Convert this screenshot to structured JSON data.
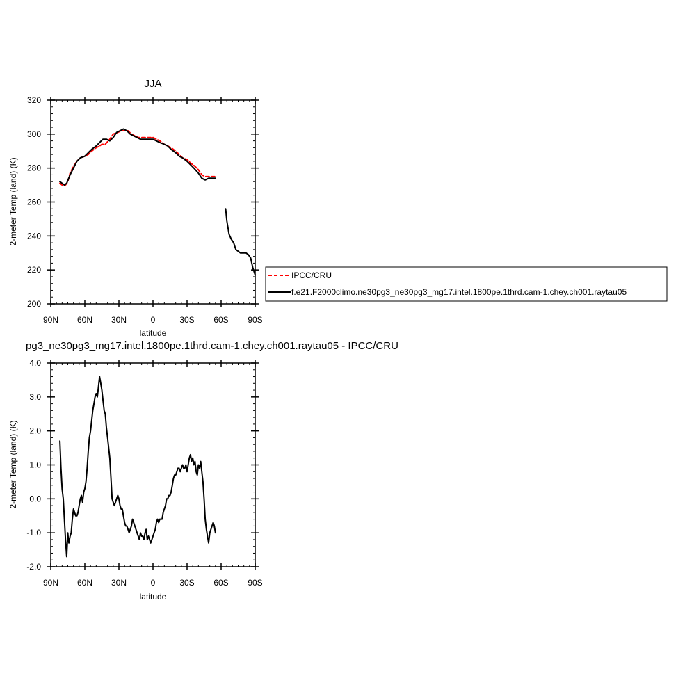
{
  "chart_data": [
    {
      "type": "line",
      "title": "JJA",
      "xlabel": "latitude",
      "ylabel": "2-meter Temp (land) (K)",
      "x_unit": "degrees latitude (positive = N)",
      "xlim": [
        90,
        -90
      ],
      "ylim": [
        200,
        320
      ],
      "xticks": [
        90,
        60,
        30,
        0,
        -30,
        -60,
        -90
      ],
      "xtick_labels": [
        "90N",
        "60N",
        "30N",
        "0",
        "30S",
        "60S",
        "90S"
      ],
      "yticks": [
        200,
        220,
        240,
        260,
        280,
        300,
        320
      ],
      "ytick_labels": [
        "200",
        "220",
        "240",
        "260",
        "280",
        "300",
        "320"
      ],
      "grid": false,
      "legend_position": "right-outside",
      "series": [
        {
          "name": "IPCC/CRU",
          "color": "#ff0000",
          "dashed": true,
          "x": [
            82,
            80,
            77,
            75,
            73,
            70,
            67,
            64,
            60,
            57,
            54,
            50,
            47,
            45,
            42,
            38,
            35,
            31,
            28,
            25,
            22,
            19,
            16,
            13,
            10,
            7,
            3,
            0,
            -3,
            -6,
            -10,
            -13,
            -16,
            -20,
            -23,
            -26,
            -30,
            -33,
            -37,
            -40,
            -43,
            -46,
            -50,
            -53,
            -55
          ],
          "y": [
            271,
            270,
            270,
            272,
            277,
            281,
            284,
            286,
            287,
            288,
            290,
            292,
            293,
            294,
            294,
            297,
            300,
            301,
            302,
            302,
            302,
            300,
            299,
            298,
            298,
            298,
            298,
            298,
            297,
            296,
            294,
            293,
            292,
            290,
            288,
            286,
            285,
            283,
            281,
            279,
            276,
            275,
            275,
            275,
            275
          ]
        },
        {
          "name": "f.e21.F2000climo.ne30pg3_ne30pg3_mg17.intel.1800pe.1thrd.cam-1.chey.ch001.raytau05",
          "color": "#000000",
          "dashed": false,
          "x": [
            82,
            80,
            78,
            76,
            73,
            70,
            67,
            64,
            60,
            57,
            54,
            50,
            47,
            44,
            41,
            38,
            35,
            32,
            29,
            26,
            23,
            20,
            17,
            14,
            11,
            8,
            5,
            2,
            0,
            -3,
            -6,
            -10,
            -13,
            -16,
            -20,
            -23,
            -26,
            -30,
            -33,
            -36,
            -40,
            -43,
            -46,
            -49,
            -52,
            -55
          ],
          "y": [
            272,
            271,
            270,
            271,
            276,
            280,
            284,
            286,
            287,
            289,
            291,
            293,
            295,
            297,
            297,
            296,
            298,
            301,
            302,
            303,
            302,
            300,
            299,
            298,
            297,
            297,
            297,
            297,
            297,
            296,
            295,
            294,
            293,
            291,
            289,
            287,
            286,
            284,
            282,
            280,
            277,
            274,
            273,
            274,
            274,
            274
          ]
        },
        {
          "name": "",
          "color": "#000000",
          "dashed": false,
          "x": [
            -64,
            -65,
            -67,
            -69,
            -71,
            -73,
            -75,
            -77,
            -79,
            -82,
            -84,
            -86,
            -88,
            -90
          ],
          "y": [
            256,
            249,
            241,
            238,
            236,
            232,
            231,
            230,
            230,
            230,
            229,
            227,
            221,
            217
          ]
        }
      ]
    },
    {
      "type": "line",
      "title": "pg3_ne30pg3_mg17.intel.1800pe.1thrd.cam-1.chey.ch001.raytau05 - IPCC/CRU",
      "xlabel": "latitude",
      "ylabel": "2-meter Temp (land) (K)",
      "x_unit": "degrees latitude (positive = N)",
      "xlim": [
        90,
        -90
      ],
      "ylim": [
        -2.0,
        4.0
      ],
      "xticks": [
        90,
        60,
        30,
        0,
        -30,
        -60,
        -90
      ],
      "xtick_labels": [
        "90N",
        "60N",
        "30N",
        "0",
        "30S",
        "60S",
        "90S"
      ],
      "yticks": [
        -2,
        -1,
        0,
        1,
        2,
        3,
        4
      ],
      "ytick_labels": [
        "-2.0",
        "-1.0",
        "0.0",
        "1.0",
        "2.0",
        "3.0",
        "4.0"
      ],
      "grid": false,
      "series": [
        {
          "name": "",
          "color": "#000000",
          "dashed": false,
          "x": [
            82,
            81,
            80,
            79,
            78,
            77,
            76,
            75,
            74.5,
            74,
            73,
            72,
            71,
            70,
            69,
            68,
            67,
            66,
            65,
            64,
            63,
            62,
            61,
            60,
            59,
            58,
            57,
            56,
            55,
            54,
            53,
            52,
            51,
            50,
            49,
            48,
            47,
            46,
            45,
            44,
            43,
            42,
            41,
            40,
            39,
            38,
            37,
            36,
            35,
            34,
            33,
            32,
            31,
            30,
            29,
            28,
            27,
            26,
            25,
            24,
            23,
            22,
            21,
            20,
            19,
            18,
            17,
            16,
            15,
            14,
            13,
            12,
            11,
            10,
            9,
            8,
            7,
            6,
            5,
            4,
            3,
            2,
            1,
            0,
            -1,
            -2,
            -3,
            -4,
            -5,
            -6,
            -7,
            -8,
            -9,
            -10,
            -11,
            -12,
            -13,
            -14,
            -15,
            -16,
            -17,
            -18,
            -19,
            -20,
            -21,
            -22,
            -23,
            -24,
            -25,
            -26,
            -27,
            -28,
            -29,
            -30,
            -31,
            -32,
            -33,
            -34,
            -35,
            -36,
            -37,
            -38,
            -39,
            -40,
            -41,
            -42,
            -43,
            -44,
            -45,
            -46,
            -47,
            -48,
            -49,
            -50,
            -51,
            -52,
            -53,
            -54,
            -55
          ],
          "y": [
            1.7,
            0.9,
            0.3,
            0.0,
            -0.6,
            -1.2,
            -1.7,
            -1.0,
            -1.2,
            -1.3,
            -1.1,
            -1.0,
            -0.6,
            -0.3,
            -0.4,
            -0.5,
            -0.5,
            -0.4,
            -0.2,
            0.0,
            0.1,
            -0.1,
            0.2,
            0.3,
            0.5,
            0.9,
            1.4,
            1.8,
            2.0,
            2.3,
            2.6,
            2.8,
            3.0,
            3.1,
            3.0,
            3.3,
            3.6,
            3.4,
            3.2,
            2.9,
            2.6,
            2.5,
            2.1,
            1.8,
            1.5,
            1.2,
            0.6,
            0.0,
            -0.1,
            -0.2,
            -0.1,
            0.0,
            0.1,
            0.0,
            -0.2,
            -0.3,
            -0.3,
            -0.5,
            -0.7,
            -0.8,
            -0.8,
            -0.9,
            -1.0,
            -0.9,
            -0.8,
            -0.6,
            -0.7,
            -0.8,
            -0.9,
            -1.0,
            -1.1,
            -1.2,
            -1.0,
            -1.1,
            -1.1,
            -1.2,
            -1.0,
            -0.9,
            -1.2,
            -1.1,
            -1.2,
            -1.3,
            -1.2,
            -1.1,
            -1.0,
            -0.9,
            -0.7,
            -0.6,
            -0.7,
            -0.6,
            -0.6,
            -0.6,
            -0.4,
            -0.3,
            -0.2,
            0.0,
            0.0,
            0.1,
            0.1,
            0.2,
            0.4,
            0.6,
            0.7,
            0.7,
            0.8,
            0.9,
            0.9,
            0.8,
            0.9,
            1.0,
            0.9,
            0.9,
            1.0,
            0.8,
            1.0,
            1.2,
            1.3,
            1.1,
            1.2,
            1.0,
            1.1,
            0.8,
            0.7,
            1.0,
            0.9,
            1.1,
            0.8,
            0.5,
            0.0,
            -0.6,
            -0.9,
            -1.1,
            -1.3,
            -1.0,
            -0.9,
            -0.8,
            -0.7,
            -0.8,
            -1.0
          ]
        }
      ]
    }
  ]
}
